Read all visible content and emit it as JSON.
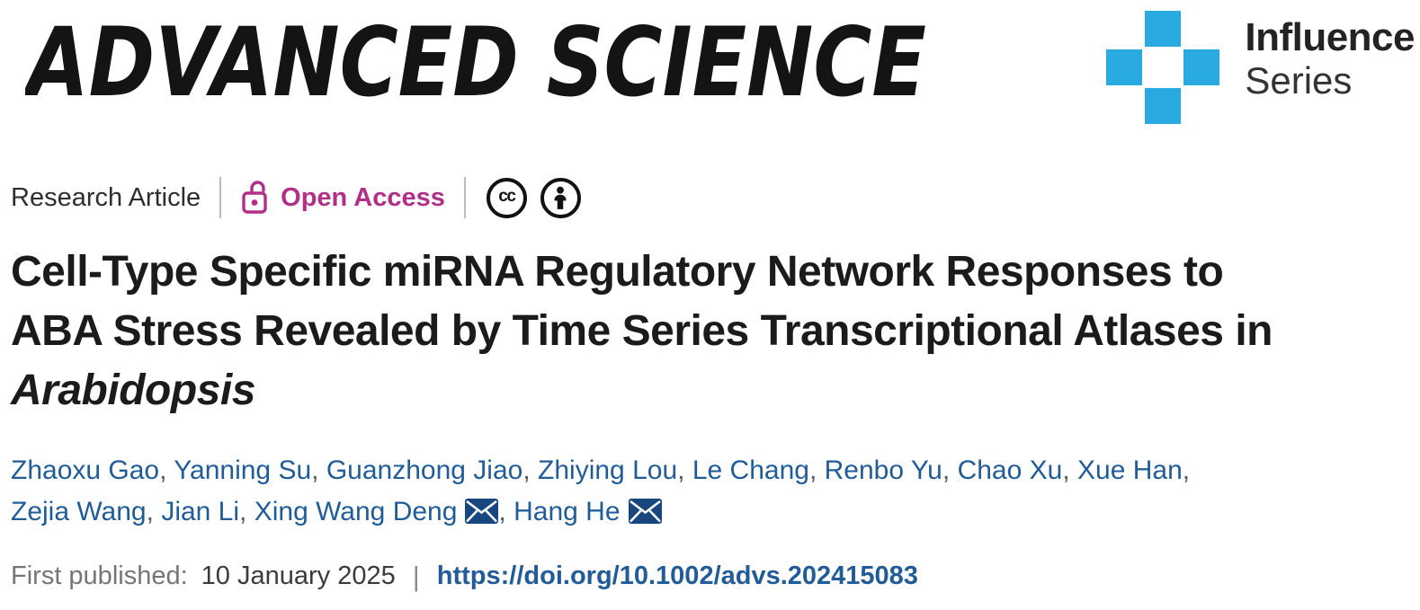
{
  "brand": {
    "journal": "ADVANCED SCIENCE",
    "series_line1": "Influence",
    "series_line2": "Series",
    "series_blue": "#29abe2"
  },
  "meta": {
    "article_type": "Research Article",
    "open_access_label": "Open Access",
    "cc_text": "cc",
    "accent_magenta": "#b12f87"
  },
  "title": {
    "line1": "Cell-Type Specific miRNA Regulatory Network Responses to",
    "line2": "ABA Stress Revealed by Time Series Transcriptional Atlases in",
    "line3_italic": "Arabidopsis"
  },
  "authors": {
    "separator": ",",
    "link_color": "#215c98",
    "list": [
      {
        "name": "Zhaoxu Gao",
        "email": false
      },
      {
        "name": "Yanning Su",
        "email": false
      },
      {
        "name": "Guanzhong Jiao",
        "email": false
      },
      {
        "name": "Zhiying Lou",
        "email": false
      },
      {
        "name": "Le Chang",
        "email": false
      },
      {
        "name": "Renbo Yu",
        "email": false
      },
      {
        "name": "Chao Xu",
        "email": false
      },
      {
        "name": "Xue Han",
        "email": false
      },
      {
        "name": "Zejia Wang",
        "email": false
      },
      {
        "name": "Jian Li",
        "email": false
      },
      {
        "name": "Xing Wang Deng",
        "email": true
      },
      {
        "name": "Hang He",
        "email": true
      }
    ]
  },
  "published": {
    "label": "First published:",
    "date": "10 January 2025",
    "divider": "|",
    "doi": "https://doi.org/10.1002/advs.202415083"
  }
}
